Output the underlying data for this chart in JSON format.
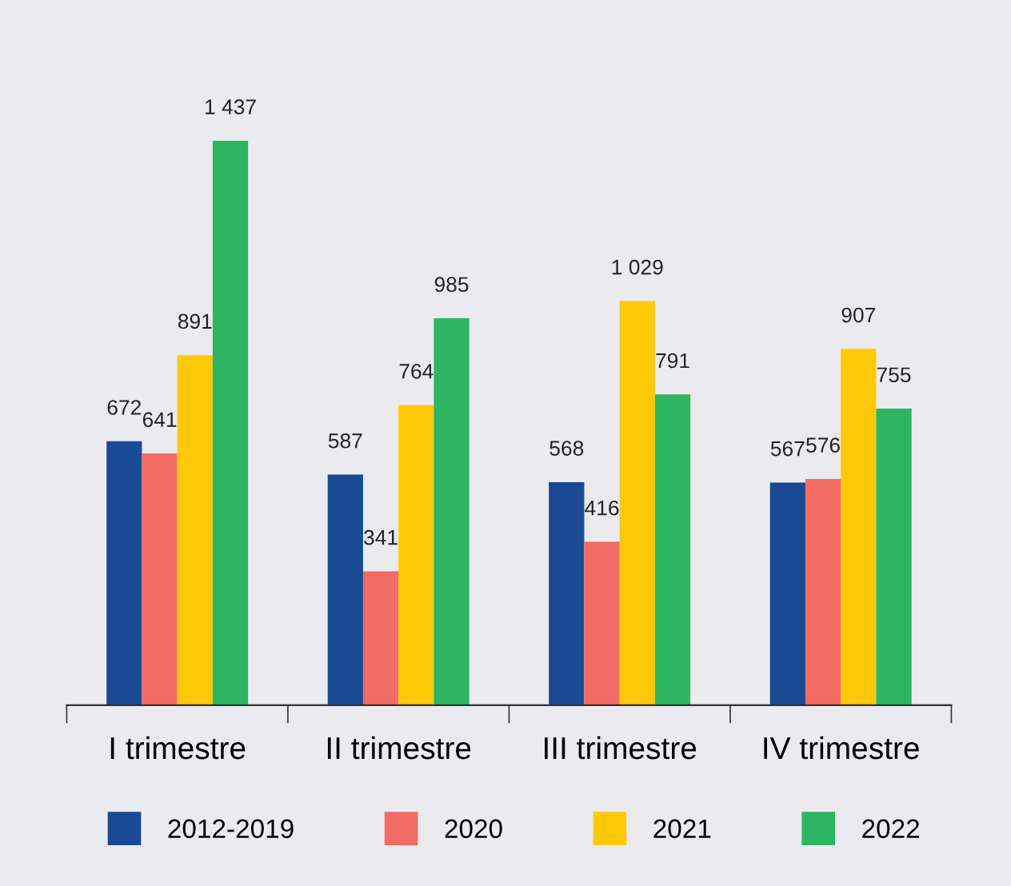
{
  "chart_data": {
    "type": "bar",
    "categories": [
      "I trimestre",
      "II trimestre",
      "III trimestre",
      "IV trimestre"
    ],
    "series": [
      {
        "name": "2012-2019",
        "color": "#1a4a94",
        "values": [
          672,
          587,
          568,
          567
        ],
        "value_labels": [
          "672",
          "587",
          "568",
          "567"
        ]
      },
      {
        "name": "2020",
        "color": "#f26b64",
        "values": [
          641,
          341,
          416,
          576
        ],
        "value_labels": [
          "641",
          "341",
          "416",
          "576"
        ]
      },
      {
        "name": "2021",
        "color": "#ffc90a",
        "values": [
          891,
          764,
          1029,
          907
        ],
        "value_labels": [
          "891",
          "764",
          "1 029",
          "907"
        ]
      },
      {
        "name": "2022",
        "color": "#2db562",
        "values": [
          1437,
          985,
          791,
          755
        ],
        "value_labels": [
          "1 437",
          "985",
          "791",
          "755"
        ]
      }
    ],
    "legend": "bottom",
    "grid": false
  }
}
